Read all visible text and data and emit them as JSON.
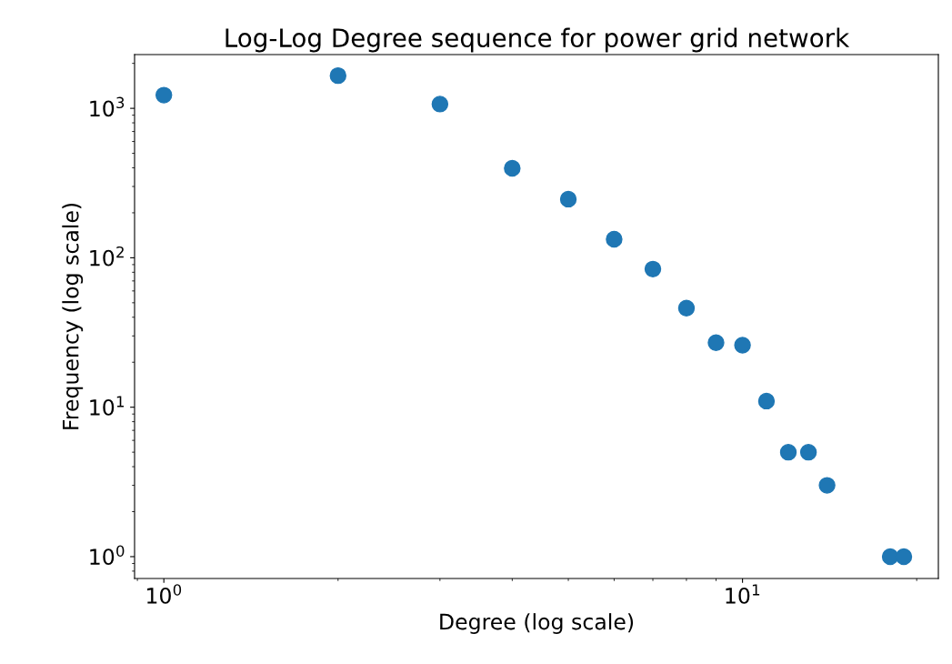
{
  "chart_data": {
    "type": "scatter",
    "title": "Log-Log Degree sequence for power grid network",
    "xlabel": "Degree (log scale)",
    "ylabel": "Frequency (log scale)",
    "x": [
      1,
      2,
      3,
      4,
      5,
      6,
      7,
      8,
      9,
      10,
      11,
      12,
      13,
      14,
      18,
      19
    ],
    "series": [
      {
        "color": "#1f77b4",
        "values": [
          1226,
          1656,
          1068,
          397,
          247,
          133,
          84,
          46,
          27,
          26,
          11,
          5,
          5,
          3,
          1,
          1
        ]
      }
    ],
    "log": "xy",
    "marker": "circle",
    "grid": false,
    "legend": false,
    "xlim": [
      0.89,
      21.8
    ],
    "ylim": [
      0.714,
      2290
    ],
    "xticks": [
      {
        "value": 1,
        "label": "10$^{0}$"
      },
      {
        "value": 10,
        "label": "10$^{1}$"
      }
    ],
    "yticks": [
      {
        "value": 1,
        "label": "10$^{0}$"
      },
      {
        "value": 10,
        "label": "10$^{1}$"
      },
      {
        "value": 100,
        "label": "10$^{2}$"
      },
      {
        "value": 1000,
        "label": "10$^{3}$"
      }
    ]
  }
}
